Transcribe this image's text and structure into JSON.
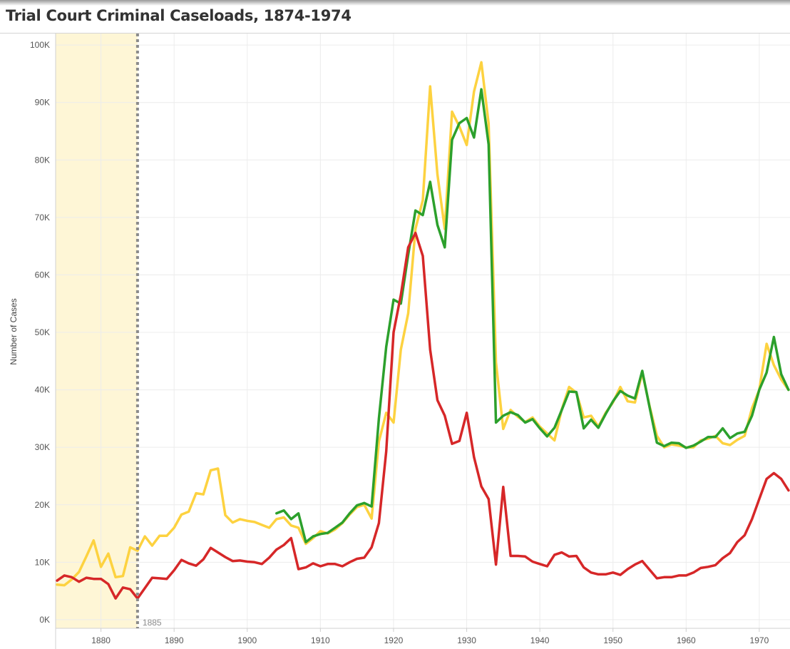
{
  "title": "Trial Court Criminal Caseloads, 1874-1974",
  "chart_data": {
    "type": "line",
    "title": "Trial Court Criminal Caseloads, 1874-1974",
    "xlabel": "",
    "ylabel": "Number of Cases",
    "xlim": [
      1873.8,
      1974.2
    ],
    "ylim": [
      -1500,
      102000
    ],
    "x_ticks": [
      1880,
      1890,
      1900,
      1910,
      1920,
      1930,
      1940,
      1950,
      1960,
      1970
    ],
    "x_tick_labels": [
      "1880",
      "1890",
      "1900",
      "1910",
      "1920",
      "1930",
      "1940",
      "1950",
      "1960",
      "1970"
    ],
    "y_ticks": [
      0,
      10000,
      20000,
      30000,
      40000,
      50000,
      60000,
      70000,
      80000,
      90000,
      100000
    ],
    "y_tick_labels": [
      "0K",
      "10K",
      "20K",
      "30K",
      "40K",
      "50K",
      "60K",
      "70K",
      "80K",
      "90K",
      "100K"
    ],
    "grid": true,
    "legend": "none",
    "highlight_band": {
      "from": 1874,
      "to": 1885,
      "color": "#fef6d6"
    },
    "reference_line": {
      "x": 1885,
      "label": "1885",
      "color": "#8c8c8c"
    },
    "series": [
      {
        "color": "#fdd240",
        "x": [
          1874,
          1875,
          1876,
          1877,
          1878,
          1879,
          1880,
          1881,
          1882,
          1883,
          1884,
          1885,
          1886,
          1887,
          1888,
          1889,
          1890,
          1891,
          1892,
          1893,
          1894,
          1895,
          1896,
          1897,
          1898,
          1899,
          1900,
          1901,
          1902,
          1903,
          1904,
          1905,
          1906,
          1907,
          1908,
          1909,
          1910,
          1911,
          1912,
          1913,
          1914,
          1915,
          1916,
          1917,
          1918,
          1919,
          1920,
          1921,
          1922,
          1923,
          1924,
          1925,
          1926,
          1927,
          1928,
          1929,
          1930,
          1931,
          1932,
          1933,
          1934,
          1935,
          1936,
          1937,
          1938,
          1939,
          1940,
          1941,
          1942,
          1943,
          1944,
          1945,
          1946,
          1947,
          1948,
          1949,
          1950,
          1951,
          1952,
          1953,
          1954,
          1955,
          1956,
          1957,
          1958,
          1959,
          1960,
          1961,
          1962,
          1963,
          1964,
          1965,
          1966,
          1967,
          1968,
          1969,
          1970,
          1971,
          1972,
          1973,
          1974
        ],
        "values": [
          6100,
          6000,
          7000,
          8300,
          11000,
          13800,
          9200,
          11500,
          7400,
          7600,
          12600,
          12000,
          14500,
          12900,
          14600,
          14600,
          16000,
          18300,
          18800,
          22000,
          21800,
          26000,
          26300,
          18200,
          16900,
          17500,
          17200,
          17000,
          16500,
          16000,
          17500,
          17800,
          16400,
          16000,
          13200,
          14200,
          15400,
          15000,
          15700,
          16800,
          18300,
          19600,
          20000,
          17600,
          31000,
          36000,
          34300,
          47000,
          53300,
          68000,
          73000,
          92800,
          77500,
          68000,
          88400,
          85800,
          82600,
          91900,
          97000,
          86300,
          44800,
          33200,
          36500,
          35300,
          34400,
          35200,
          33600,
          32400,
          31200,
          36600,
          40500,
          39500,
          35200,
          35500,
          33600,
          36000,
          37800,
          40500,
          38000,
          37800,
          43000,
          37200,
          32000,
          30000,
          30500,
          30300,
          30000,
          30000,
          31200,
          31500,
          32000,
          30700,
          30400,
          31300,
          32000,
          36800,
          40000,
          48000,
          44300,
          41800,
          40000
        ]
      },
      {
        "color": "#2ca02c",
        "x": [
          1904,
          1905,
          1906,
          1907,
          1908,
          1909,
          1910,
          1911,
          1912,
          1913,
          1914,
          1915,
          1916,
          1917,
          1918,
          1919,
          1920,
          1921,
          1922,
          1923,
          1924,
          1925,
          1926,
          1927,
          1928,
          1929,
          1930,
          1931,
          1932,
          1933,
          1934,
          1935,
          1936,
          1937,
          1938,
          1939,
          1940,
          1941,
          1942,
          1943,
          1944,
          1945,
          1946,
          1947,
          1948,
          1949,
          1950,
          1951,
          1952,
          1953,
          1954,
          1955,
          1956,
          1957,
          1958,
          1959,
          1960,
          1961,
          1962,
          1963,
          1964,
          1965,
          1966,
          1967,
          1968,
          1969,
          1970,
          1971,
          1972,
          1973,
          1974
        ],
        "values": [
          18500,
          19000,
          17500,
          18500,
          13500,
          14500,
          14900,
          15100,
          16000,
          16900,
          18500,
          19900,
          20300,
          19700,
          35000,
          47500,
          55700,
          55000,
          63500,
          71200,
          70400,
          76200,
          68700,
          64800,
          83500,
          86400,
          87300,
          83900,
          92300,
          82700,
          34300,
          35500,
          36100,
          35600,
          34300,
          34900,
          33300,
          31900,
          33400,
          36500,
          39700,
          39600,
          33300,
          34800,
          33400,
          35800,
          38000,
          39800,
          39000,
          38500,
          43300,
          37000,
          30800,
          30200,
          30800,
          30700,
          29900,
          30300,
          31000,
          31800,
          31800,
          33300,
          31600,
          32400,
          32700,
          35500,
          40000,
          43000,
          49200,
          42700,
          40000
        ]
      },
      {
        "color": "#d62728",
        "x": [
          1874,
          1875,
          1876,
          1877,
          1878,
          1879,
          1880,
          1881,
          1882,
          1883,
          1884,
          1885,
          1886,
          1887,
          1888,
          1889,
          1890,
          1891,
          1892,
          1893,
          1894,
          1895,
          1896,
          1897,
          1898,
          1899,
          1900,
          1901,
          1902,
          1903,
          1904,
          1905,
          1906,
          1907,
          1908,
          1909,
          1910,
          1911,
          1912,
          1913,
          1914,
          1915,
          1916,
          1917,
          1918,
          1919,
          1920,
          1921,
          1922,
          1923,
          1924,
          1925,
          1926,
          1927,
          1928,
          1929,
          1930,
          1931,
          1932,
          1933,
          1934,
          1935,
          1936,
          1937,
          1938,
          1939,
          1940,
          1941,
          1942,
          1943,
          1944,
          1945,
          1946,
          1947,
          1948,
          1949,
          1950,
          1951,
          1952,
          1953,
          1954,
          1955,
          1956,
          1957,
          1958,
          1959,
          1960,
          1961,
          1962,
          1963,
          1964,
          1965,
          1966,
          1967,
          1968,
          1969,
          1970,
          1971,
          1972,
          1973,
          1974
        ],
        "values": [
          6800,
          7700,
          7400,
          6600,
          7300,
          7100,
          7100,
          6200,
          3700,
          5600,
          5300,
          3700,
          5500,
          7300,
          7200,
          7100,
          8600,
          10400,
          9800,
          9400,
          10500,
          12500,
          11700,
          10900,
          10200,
          10300,
          10100,
          10000,
          9700,
          10800,
          12200,
          13000,
          14200,
          8800,
          9100,
          9800,
          9300,
          9700,
          9700,
          9300,
          10000,
          10600,
          10800,
          12600,
          16800,
          29300,
          50000,
          56500,
          64800,
          67300,
          63300,
          47000,
          38200,
          35500,
          30600,
          31100,
          36000,
          28300,
          23200,
          21000,
          9600,
          23100,
          11100,
          11100,
          11000,
          10100,
          9700,
          9300,
          11300,
          11700,
          11000,
          11100,
          9100,
          8200,
          7900,
          7900,
          8200,
          7800,
          8800,
          9600,
          10200,
          8700,
          7200,
          7400,
          7400,
          7700,
          7700,
          8200,
          9000,
          9200,
          9500,
          10700,
          11600,
          13500,
          14700,
          17500,
          21000,
          24500,
          25500,
          24500,
          22500
        ]
      }
    ]
  }
}
